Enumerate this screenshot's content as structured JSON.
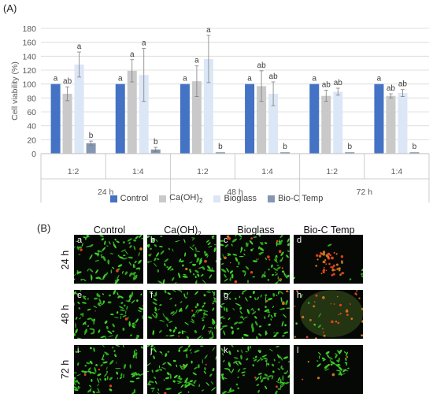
{
  "panel_a_label": "(A)",
  "panel_b_label": "(B)",
  "chart_data": {
    "type": "bar",
    "ylabel": "Cell viability (%)",
    "ylim": [
      0,
      180
    ],
    "yticks": [
      0,
      20,
      40,
      60,
      80,
      100,
      120,
      140,
      160,
      180
    ],
    "grid": true,
    "legend_position": "bottom",
    "categories": [
      "1:2",
      "1:4",
      "1:2",
      "1:4",
      "1:2",
      "1:4"
    ],
    "groups": [
      "24 h",
      "48 h",
      "72 h"
    ],
    "series": [
      {
        "name": "Control",
        "color": "#4472c4",
        "values": [
          100,
          100,
          100,
          100,
          100,
          100
        ],
        "errors": [
          0,
          0,
          0,
          0,
          0,
          0
        ],
        "labels": [
          "a",
          "a",
          "a",
          "a",
          "a",
          "a"
        ]
      },
      {
        "name": "Ca(OH)2",
        "color": "#c9c9c9",
        "values": [
          86,
          119,
          104,
          97,
          83,
          83
        ],
        "errors": [
          10,
          16,
          22,
          22,
          8,
          3
        ],
        "labels": [
          "ab",
          "a",
          "a",
          "ab",
          "ab",
          "ab"
        ]
      },
      {
        "name": "Bioglass",
        "color": "#dbe7f6",
        "values": [
          128,
          113,
          136,
          86,
          89,
          87
        ],
        "errors": [
          18,
          38,
          34,
          17,
          5,
          5
        ],
        "labels": [
          "a",
          "a",
          "a",
          "ab",
          "ab",
          "ab"
        ]
      },
      {
        "name": "Bio-C Temp",
        "color": "#8497b0",
        "values": [
          15,
          6,
          2,
          2,
          2,
          2
        ],
        "errors": [
          3,
          3,
          0,
          0,
          0,
          0
        ],
        "labels": [
          "b",
          "b",
          "b",
          "b",
          "b",
          "b"
        ]
      }
    ]
  },
  "legend": {
    "control": "Control",
    "caoh_base": "Ca(OH)",
    "caoh_sub": "2",
    "bioglass": "Bioglass",
    "bioc": "Bio-C Temp"
  },
  "micrographs": {
    "columns": {
      "control": "Control",
      "caoh_base": "Ca(OH)",
      "caoh_sub": "2",
      "bioglass": "Bioglass",
      "bioc": "Bio-C Temp"
    },
    "rows": [
      "24 h",
      "48 h",
      "72 h"
    ],
    "letters": [
      "a",
      "b",
      "c",
      "d",
      "e",
      "f",
      "g",
      "h",
      "i",
      "j",
      "k",
      "l"
    ]
  }
}
